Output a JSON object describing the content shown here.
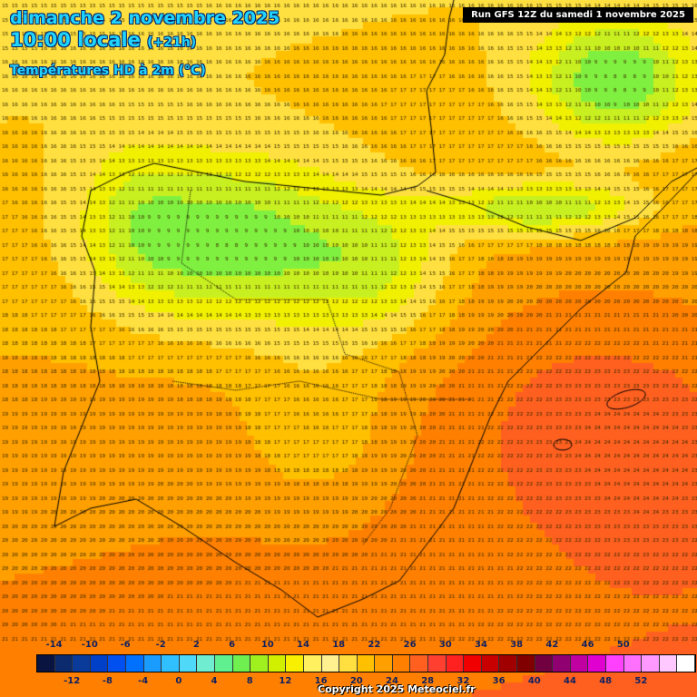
{
  "header": {
    "date_line": "dimanche 2 novembre 2025",
    "time_main": "10:00 locale",
    "time_offset": "(+21h)",
    "parameter": "Températures HD à 2m (°C)"
  },
  "run_info": "Run GFS 12Z du samedi 1 novembre 2025",
  "copyright": "Copyright 2025 Meteociel.fr",
  "legend": {
    "top_labels": [
      "-14",
      "-10",
      "-6",
      "-2",
      "2",
      "6",
      "10",
      "14",
      "18",
      "22",
      "26",
      "30",
      "34",
      "38",
      "42",
      "46",
      "50"
    ],
    "bottom_labels": [
      "-12",
      "-8",
      "-4",
      "0",
      "4",
      "8",
      "12",
      "16",
      "20",
      "24",
      "28",
      "32",
      "36",
      "40",
      "44",
      "48",
      "52"
    ],
    "colors": [
      "#0a1440",
      "#0c2a6e",
      "#0a3a9a",
      "#0040c8",
      "#0050f0",
      "#0070ff",
      "#1a9cff",
      "#30c0ff",
      "#50d8f8",
      "#70ecd0",
      "#60f090",
      "#70f050",
      "#a0f020",
      "#d0f000",
      "#f8f000",
      "#fff060",
      "#fff090",
      "#ffe040",
      "#ffc000",
      "#ffa000",
      "#ff8000",
      "#ff6020",
      "#ff4030",
      "#ff2020",
      "#f00000",
      "#c80000",
      "#a00000",
      "#800000",
      "#700040",
      "#900070",
      "#c000a0",
      "#e000d0",
      "#ff40ff",
      "#ff70ff",
      "#ff99ff",
      "#ffc8ff",
      "#ffffff"
    ]
  },
  "map_field": {
    "rows": [
      "151515151515151515151515151515151515151515141414141414141413131313131313121211101010",
      "161515151515151515151515151515151515151515141414141413131313131312121110109987676",
      "161616151515151515151515151515151515151515141414141313131313121211111010987666",
      "161616161515151515151515151515151515151515141414141313131312121111101098765",
      "171716161615151515151515151515151515151515141414141413131313121211101098877"
    ],
    "note_cells": "grid-values"
  }
}
